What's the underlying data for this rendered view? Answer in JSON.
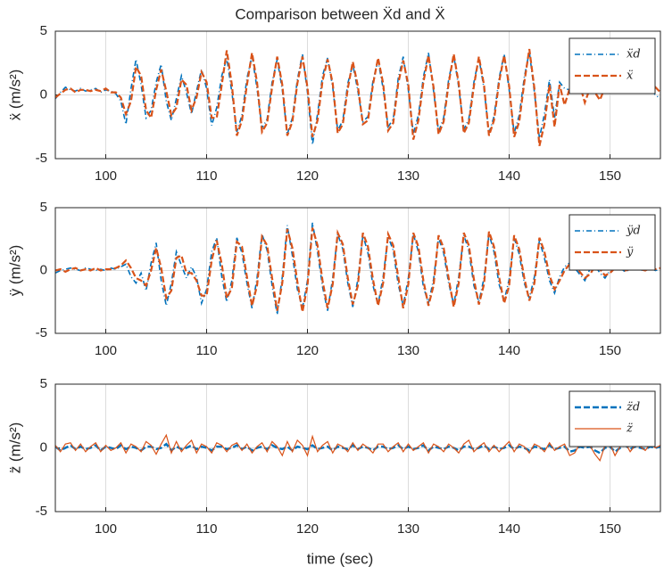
{
  "chart_data": [
    {
      "type": "line",
      "title": "Comparison between Ẍd and Ẍ",
      "ylabel": "ẍ (m/s²)",
      "grid": true,
      "legend": "upper right",
      "xlim": [
        95,
        155
      ],
      "xticks": [
        100,
        110,
        120,
        130,
        140,
        150
      ],
      "ylim": [
        -5,
        5
      ],
      "yticks": [
        -5,
        0,
        5
      ],
      "x": [
        95,
        95.5,
        96,
        96.5,
        97,
        97.5,
        98,
        98.5,
        99,
        99.5,
        100,
        100.5,
        101,
        101.5,
        102,
        102.5,
        103,
        103.5,
        104,
        104.5,
        105,
        105.5,
        106,
        106.5,
        107,
        107.5,
        108,
        108.5,
        109,
        109.5,
        110,
        110.5,
        111,
        111.5,
        112,
        112.5,
        113,
        113.5,
        114,
        114.5,
        115,
        115.5,
        116,
        116.5,
        117,
        117.5,
        118,
        118.5,
        119,
        119.5,
        120,
        120.5,
        121,
        121.5,
        122,
        122.5,
        123,
        123.5,
        124,
        124.5,
        125,
        125.5,
        126,
        126.5,
        127,
        127.5,
        128,
        128.5,
        129,
        129.5,
        130,
        130.5,
        131,
        131.5,
        132,
        132.5,
        133,
        133.5,
        134,
        134.5,
        135,
        135.5,
        136,
        136.5,
        137,
        137.5,
        138,
        138.5,
        139,
        139.5,
        140,
        140.5,
        141,
        141.5,
        142,
        142.5,
        143,
        143.5,
        144,
        144.5,
        145,
        145.5,
        146,
        146.5,
        147,
        147.5,
        148,
        148.5,
        149,
        149.5,
        150,
        150.5,
        151,
        151.5,
        152,
        152.5,
        153,
        153.5,
        154,
        154.5,
        155
      ],
      "series": [
        {
          "name": "ẍd",
          "color": "#0072bd",
          "dash": "6 3 1 3",
          "width": 1.6,
          "values": [
            -0.3,
            0.2,
            0.6,
            0.4,
            0.3,
            0.5,
            0.3,
            0.4,
            0.5,
            0.2,
            0.4,
            0.3,
            0.1,
            -0.5,
            -2.3,
            0.5,
            2.8,
            0.8,
            -1.8,
            -1.2,
            1,
            2.4,
            -0.5,
            -2,
            -0.3,
            1.5,
            0.2,
            -1.5,
            0.3,
            2,
            0.5,
            -2.4,
            -1,
            1.5,
            2.9,
            0.2,
            -2.9,
            -1.6,
            1.3,
            3.1,
            0.5,
            -2.6,
            -1.9,
            1.0,
            2.8,
            0.4,
            -3.1,
            -1.8,
            1.2,
            3.2,
            0.2,
            -3.9,
            -1.5,
            1.5,
            2.9,
            0.6,
            -2.8,
            -2.0,
            0.9,
            2.4,
            0.3,
            -2.1,
            -1.7,
            1.1,
            2.7,
            0.5,
            -2.5,
            -1.9,
            1.3,
            3.0,
            0.4,
            -3.0,
            -1.6,
            1.4,
            3.3,
            0.3,
            -2.9,
            -1.8,
            1.2,
            3.1,
            0.6,
            -2.7,
            -1.9,
            1.0,
            2.9,
            0.5,
            -3.0,
            -1.7,
            1.3,
            3.2,
            0.4,
            -3.0,
            -1.6,
            1.4,
            3.4,
            0.2,
            -3.4,
            -1.5,
            1.2,
            -1.8,
            1.0,
            0.5,
            0.4,
            0.6,
            0.3,
            0.5,
            0.4,
            0.6,
            0.5,
            0.3,
            0.4,
            0.6,
            0.5,
            0.4,
            0.3,
            0.5,
            0.6,
            0.4,
            0.5,
            0.0,
            -0.3
          ]
        },
        {
          "name": "ẍ",
          "color": "#d95319",
          "dash": "7 3",
          "width": 2.2,
          "values": [
            -0.2,
            0.1,
            0.4,
            0.5,
            0.2,
            0.4,
            0.4,
            0.3,
            0.4,
            0.3,
            0.5,
            0.2,
            0.2,
            -0.2,
            -1.5,
            -0.5,
            2.2,
            1.5,
            -1.2,
            -1.8,
            0.4,
            2.0,
            0.3,
            -1.6,
            -1.0,
            1.2,
            0.8,
            -1.2,
            -0.2,
            1.8,
            1.0,
            -1.8,
            -1.8,
            0.8,
            3.5,
            0.8,
            -3.2,
            -2.0,
            0.8,
            3.3,
            1.0,
            -2.9,
            -2.2,
            0.6,
            3.0,
            0.8,
            -3.2,
            -2.1,
            0.9,
            3.0,
            0.6,
            -3.3,
            -2.0,
            1.1,
            2.8,
            0.9,
            -3.0,
            -2.3,
            0.5,
            2.6,
            0.7,
            -2.3,
            -2.0,
            0.8,
            2.9,
            0.9,
            -2.8,
            -2.2,
            0.9,
            2.7,
            0.8,
            -3.5,
            -2.0,
            1.0,
            3.1,
            0.6,
            -3.1,
            -2.1,
            0.9,
            3.2,
            0.9,
            -3.0,
            -2.2,
            0.7,
            3.0,
            0.8,
            -3.2,
            -2.0,
            1.0,
            3.1,
            0.7,
            -3.3,
            -2.1,
            1.0,
            3.6,
            0.5,
            -4.0,
            -2.3,
            0.8,
            -2.5,
            0.8,
            -0.8,
            0.5,
            0.3,
            0.8,
            -0.6,
            0.5,
            0.2,
            -0.4,
            0.6,
            0.3,
            0.5,
            0.2,
            0.6,
            0.4,
            0.3,
            0.5,
            0.2,
            0.4,
            0.6,
            0.2
          ]
        }
      ]
    },
    {
      "type": "line",
      "ylabel": "ÿ (m/s²)",
      "grid": true,
      "legend": "upper right",
      "xlim": [
        95,
        155
      ],
      "xticks": [
        100,
        110,
        120,
        130,
        140,
        150
      ],
      "ylim": [
        -5,
        5
      ],
      "yticks": [
        -5,
        0,
        5
      ],
      "x": [
        95,
        95.5,
        96,
        96.5,
        97,
        97.5,
        98,
        98.5,
        99,
        99.5,
        100,
        100.5,
        101,
        101.5,
        102,
        102.5,
        103,
        103.5,
        104,
        104.5,
        105,
        105.5,
        106,
        106.5,
        107,
        107.5,
        108,
        108.5,
        109,
        109.5,
        110,
        110.5,
        111,
        111.5,
        112,
        112.5,
        113,
        113.5,
        114,
        114.5,
        115,
        115.5,
        116,
        116.5,
        117,
        117.5,
        118,
        118.5,
        119,
        119.5,
        120,
        120.5,
        121,
        121.5,
        122,
        122.5,
        123,
        123.5,
        124,
        124.5,
        125,
        125.5,
        126,
        126.5,
        127,
        127.5,
        128,
        128.5,
        129,
        129.5,
        130,
        130.5,
        131,
        131.5,
        132,
        132.5,
        133,
        133.5,
        134,
        134.5,
        135,
        135.5,
        136,
        136.5,
        137,
        137.5,
        138,
        138.5,
        139,
        139.5,
        140,
        140.5,
        141,
        141.5,
        142,
        142.5,
        143,
        143.5,
        144,
        144.5,
        145,
        145.5,
        146,
        146.5,
        147,
        147.5,
        148,
        148.5,
        149,
        149.5,
        150,
        150.5,
        151,
        151.5,
        152,
        152.5,
        153,
        153.5,
        154,
        154.5,
        155
      ],
      "series": [
        {
          "name": "ÿd",
          "color": "#0072bd",
          "dash": "6 3 1 3",
          "width": 1.6,
          "values": [
            -0.2,
            0.0,
            0.1,
            0.2,
            0.1,
            0.0,
            0.2,
            0.1,
            0.0,
            0.1,
            0.0,
            0.2,
            0.1,
            0.3,
            0.5,
            -0.5,
            -1.0,
            -0.2,
            -1.6,
            0.6,
            2.2,
            -0.8,
            -2.8,
            -1.0,
            1.5,
            0.4,
            -0.6,
            0.3,
            -0.5,
            -2.6,
            -1.5,
            1.5,
            2.6,
            -0.5,
            -2.5,
            -0.8,
            2.6,
            1.4,
            -1.0,
            -3.0,
            -0.6,
            2.9,
            1.6,
            -1.2,
            -3.5,
            -0.5,
            3.6,
            1.2,
            -1.5,
            -3.0,
            -0.8,
            3.8,
            1.5,
            -1.3,
            -3.2,
            -0.6,
            2.9,
            1.7,
            -1.0,
            -2.9,
            -0.7,
            2.8,
            1.4,
            -1.2,
            -2.7,
            -0.5,
            2.7,
            1.6,
            -1.1,
            -2.8,
            -0.6,
            2.9,
            1.5,
            -1.3,
            -2.6,
            -0.7,
            2.6,
            1.4,
            -1.0,
            -2.7,
            -0.5,
            2.8,
            1.6,
            -1.2,
            -2.5,
            -0.6,
            2.9,
            1.5,
            -1.1,
            -2.4,
            -0.7,
            2.6,
            1.3,
            -1.0,
            -2.2,
            -0.5,
            2.4,
            1.0,
            -0.8,
            -1.8,
            -0.5,
            0.3,
            0.6,
            0.2,
            -0.3,
            -0.8,
            0.1,
            0.4,
            -0.2,
            -0.6,
            0.0,
            0.3,
            0.2,
            -0.1,
            0.1,
            0.2,
            0.0,
            0.1,
            0.2,
            0.0,
            0.1
          ]
        },
        {
          "name": "ÿ",
          "color": "#d95319",
          "dash": "7 3",
          "width": 2.2,
          "values": [
            0.0,
            0.1,
            -0.1,
            0.1,
            0.2,
            0.0,
            0.1,
            0.0,
            0.2,
            0.0,
            0.1,
            0.1,
            0.2,
            0.4,
            0.8,
            0.2,
            -0.6,
            -0.8,
            -1.2,
            0.0,
            1.8,
            0.2,
            -2.2,
            -1.6,
            1.0,
            1.2,
            -0.2,
            -0.2,
            -0.8,
            -2.0,
            -2.0,
            0.8,
            2.4,
            0.5,
            -2.2,
            -1.4,
            2.3,
            1.9,
            -0.5,
            -2.8,
            -1.2,
            2.7,
            2.0,
            -0.6,
            -3.2,
            -1.0,
            3.3,
            1.8,
            -0.9,
            -3.3,
            -1.2,
            3.4,
            2.0,
            -0.8,
            -3.0,
            -1.1,
            3.0,
            2.1,
            -0.6,
            -2.7,
            -1.2,
            3.0,
            1.9,
            -0.7,
            -2.8,
            -1.0,
            2.9,
            2.0,
            -0.5,
            -3.0,
            -1.1,
            3.0,
            1.9,
            -0.8,
            -2.8,
            -1.2,
            2.8,
            1.8,
            -0.6,
            -2.9,
            -1.0,
            3.0,
            2.0,
            -0.7,
            -2.7,
            -1.1,
            3.1,
            1.9,
            -0.5,
            -2.6,
            -1.2,
            2.8,
            1.7,
            -0.6,
            -2.4,
            -1.0,
            2.6,
            1.5,
            -0.4,
            -1.5,
            -0.8,
            0.0,
            0.5,
            0.4,
            -0.1,
            -0.6,
            -0.3,
            0.3,
            0.1,
            -0.4,
            -0.2,
            0.2,
            0.3,
            0.0,
            0.1,
            0.2,
            0.1,
            0.0,
            0.2,
            0.1,
            0.2
          ]
        }
      ]
    },
    {
      "type": "line",
      "ylabel": "z̈ (m/s²)",
      "xlabel": "time (sec)",
      "grid": true,
      "legend": "upper right",
      "xlim": [
        95,
        155
      ],
      "xticks": [
        100,
        110,
        120,
        130,
        140,
        150
      ],
      "ylim": [
        -5,
        5
      ],
      "yticks": [
        -5,
        0,
        5
      ],
      "x": [
        95,
        95.5,
        96,
        96.5,
        97,
        97.5,
        98,
        98.5,
        99,
        99.5,
        100,
        100.5,
        101,
        101.5,
        102,
        102.5,
        103,
        103.5,
        104,
        104.5,
        105,
        105.5,
        106,
        106.5,
        107,
        107.5,
        108,
        108.5,
        109,
        109.5,
        110,
        110.5,
        111,
        111.5,
        112,
        112.5,
        113,
        113.5,
        114,
        114.5,
        115,
        115.5,
        116,
        116.5,
        117,
        117.5,
        118,
        118.5,
        119,
        119.5,
        120,
        120.5,
        121,
        121.5,
        122,
        122.5,
        123,
        123.5,
        124,
        124.5,
        125,
        125.5,
        126,
        126.5,
        127,
        127.5,
        128,
        128.5,
        129,
        129.5,
        130,
        130.5,
        131,
        131.5,
        132,
        132.5,
        133,
        133.5,
        134,
        134.5,
        135,
        135.5,
        136,
        136.5,
        137,
        137.5,
        138,
        138.5,
        139,
        139.5,
        140,
        140.5,
        141,
        141.5,
        142,
        142.5,
        143,
        143.5,
        144,
        144.5,
        145,
        145.5,
        146,
        146.5,
        147,
        147.5,
        148,
        148.5,
        149,
        149.5,
        150,
        150.5,
        151,
        151.5,
        152,
        152.5,
        153,
        153.5,
        154,
        154.5,
        155
      ],
      "series": [
        {
          "name": "z̈d",
          "color": "#0072bd",
          "dash": "7 3",
          "width": 2.4,
          "values": [
            0.1,
            -0.2,
            0.0,
            0.2,
            -0.1,
            0.1,
            -0.1,
            0.0,
            0.2,
            -0.2,
            0.1,
            0.0,
            -0.1,
            0.2,
            -0.1,
            0.1,
            0.0,
            -0.2,
            0.1,
            0.1,
            -0.1,
            0.0,
            0.3,
            -0.2,
            0.1,
            -0.1,
            0.0,
            0.2,
            -0.1,
            0.1,
            0.0,
            -0.2,
            0.1,
            0.1,
            -0.1,
            0.0,
            0.2,
            -0.1,
            0.1,
            -0.2,
            0.0,
            0.1,
            -0.1,
            0.2,
            0.0,
            -0.1,
            0.1,
            -0.2,
            0.1,
            0.0,
            -0.1,
            0.2,
            -0.1,
            0.0,
            0.1,
            -0.2,
            0.1,
            0.0,
            -0.1,
            0.2,
            -0.1,
            0.1,
            0.0,
            -0.2,
            0.1,
            0.1,
            -0.1,
            0.0,
            0.2,
            -0.1,
            0.1,
            -0.1,
            0.0,
            0.2,
            -0.2,
            0.1,
            0.0,
            -0.1,
            0.1,
            0.0,
            -0.2,
            0.1,
            0.1,
            -0.1,
            0.0,
            0.2,
            -0.1,
            0.1,
            -0.1,
            0.0,
            0.2,
            -0.1,
            0.1,
            0.0,
            -0.2,
            0.1,
            0.0,
            -0.1,
            0.2,
            -0.1,
            0.0,
            0.1,
            -0.3,
            -0.2,
            0.1,
            0.0,
            0.1,
            -0.2,
            -0.4,
            0.0,
            0.1,
            -0.3,
            0.0,
            0.2,
            -0.1,
            0.1,
            0.0,
            -0.1,
            0.1,
            0.0,
            0.1
          ]
        },
        {
          "name": "z̈",
          "color": "#d95319",
          "dash": "",
          "width": 1.2,
          "values": [
            0.2,
            -0.3,
            0.3,
            0.4,
            -0.2,
            0.3,
            -0.3,
            0.1,
            0.4,
            -0.3,
            0.2,
            -0.2,
            0.0,
            0.4,
            -0.4,
            0.3,
            0.1,
            -0.3,
            0.5,
            0.2,
            -0.5,
            0.3,
            1.0,
            -0.4,
            0.5,
            -0.3,
            0.2,
            0.6,
            -0.4,
            0.3,
            0.1,
            -0.4,
            0.4,
            0.2,
            -0.3,
            0.2,
            0.4,
            -0.2,
            0.3,
            -0.4,
            0.1,
            0.4,
            -0.3,
            0.5,
            0.1,
            -0.6,
            0.5,
            -0.3,
            0.6,
            0.2,
            -0.6,
            0.9,
            -0.3,
            0.2,
            0.5,
            -0.4,
            0.3,
            0.1,
            -0.3,
            0.4,
            -0.2,
            0.3,
            0.0,
            -0.4,
            0.3,
            0.3,
            -0.3,
            0.1,
            0.4,
            -0.3,
            0.3,
            -0.2,
            0.1,
            0.4,
            -0.4,
            0.3,
            0.1,
            -0.3,
            0.3,
            0.0,
            -0.4,
            0.3,
            0.6,
            -0.3,
            0.1,
            0.4,
            -0.3,
            0.2,
            -0.3,
            0.1,
            0.5,
            -0.3,
            0.3,
            0.1,
            -0.4,
            0.3,
            0.1,
            -0.3,
            0.4,
            -0.2,
            0.1,
            0.3,
            -0.6,
            -0.4,
            0.3,
            0.1,
            0.2,
            -0.5,
            -1.0,
            0.2,
            0.3,
            -0.6,
            0.1,
            0.4,
            -0.3,
            0.2,
            0.1,
            -0.2,
            0.3,
            0.0,
            0.2
          ]
        }
      ]
    }
  ]
}
